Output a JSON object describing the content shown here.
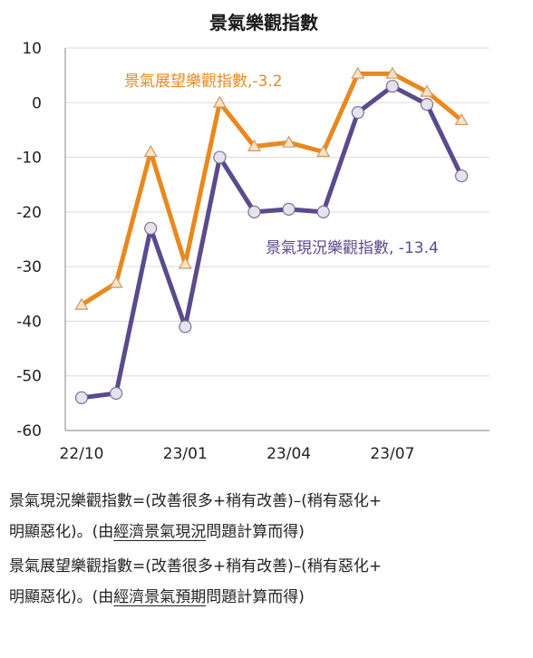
{
  "chart_data": {
    "type": "line",
    "title": "景氣樂觀指數",
    "x": [
      "22/10",
      "22/11",
      "22/12",
      "23/01",
      "23/02",
      "23/03",
      "23/04",
      "23/05",
      "23/06",
      "23/07",
      "23/08",
      "23/09"
    ],
    "x_tick_labels": [
      "22/10",
      "23/01",
      "23/04",
      "23/07"
    ],
    "y_ticks": [
      10,
      0,
      -10,
      -20,
      -30,
      -40,
      -50,
      -60
    ],
    "ylim": [
      -60,
      10
    ],
    "grid": true,
    "series": [
      {
        "name": "景氣展望樂觀指數,-3.2",
        "color": "#E8891F",
        "marker": "triangle",
        "values": [
          -37,
          -33,
          -9,
          -29.5,
          0,
          -8,
          -7.3,
          -9,
          5.3,
          5.3,
          2,
          -3.2
        ]
      },
      {
        "name": "景氣現況樂觀指數, -13.4",
        "color": "#5B4A8C",
        "marker": "circle",
        "values": [
          -54,
          -53.2,
          -23,
          -41,
          -10,
          -20,
          -19.5,
          -20,
          -1.8,
          3,
          -0.3,
          -13.4
        ]
      }
    ]
  },
  "notes": [
    {
      "text1": "景氣現況樂觀指數=(改善很多+稍有改善)–(稍有惡化+",
      "text2_pre": "明顯惡化)。(由",
      "text2_ul": "經濟景氣現況",
      "text2_post": "問題計算而得)"
    },
    {
      "text1": "景氣展望樂觀指數=(改善很多+稍有改善)–(稍有惡化+",
      "text2_pre": "明顯惡化)。(由",
      "text2_ul": "經濟景氣預期",
      "text2_post": "問題計算而得)"
    }
  ]
}
